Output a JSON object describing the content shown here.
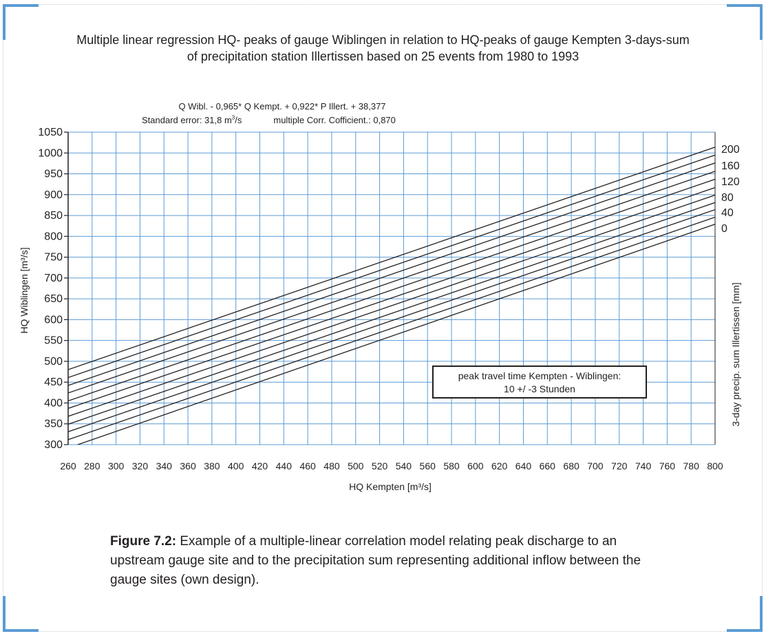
{
  "title": {
    "line1": "Multiple linear regression HQ- peaks of gauge Wiblingen in relation to HQ-peaks of gauge Kempten 3-days-sum",
    "line2": "of precipitation station Illertissen based on 25 events from 1980 to 1993"
  },
  "formula": {
    "equation": "Q Wibl. - 0,965* Q Kempt. + 0,922* P  Illert. + 38,377",
    "std_error_label": "Standard error: 31,8 m",
    "std_error_unit_sup": "3",
    "std_error_unit_tail": "/s",
    "multiple_corr": "multiple Corr. Cofficient.: 0,870"
  },
  "annotation": {
    "line1": "peak travel time Kempten - Wiblingen:",
    "line2": "10 +/ -3 Stunden"
  },
  "caption": {
    "label": "Figure 7.2:",
    "text": " Example of a multiple-linear correlation model relating peak discharge to an upstream gauge site and to the precipitation sum representing additional inflow between the gauge sites (own design)."
  },
  "colors": {
    "grid": "#5b9bd5",
    "lines": "#231f20",
    "corner_accent": "#5b9bd5"
  },
  "chart_data": {
    "type": "line",
    "xlabel": "HQ Kempten [m³/s]",
    "ylabel": "HQ Wiblingen [m³/s]",
    "y2label": "3-day precip. sum Illertissen [mm]",
    "xlim": [
      260,
      800
    ],
    "ylim": [
      300,
      1050
    ],
    "x_ticks": [
      260,
      280,
      300,
      320,
      340,
      360,
      380,
      400,
      420,
      440,
      460,
      480,
      500,
      520,
      540,
      560,
      580,
      600,
      620,
      640,
      660,
      680,
      700,
      720,
      740,
      760,
      780,
      800
    ],
    "y_ticks": [
      300,
      350,
      400,
      450,
      500,
      550,
      600,
      650,
      700,
      750,
      800,
      850,
      900,
      950,
      1000,
      1050
    ],
    "right_tick_labels": [
      "200",
      "160",
      "120",
      "80",
      "40",
      "0"
    ],
    "grid": true,
    "model": {
      "coef_kempten": 0.965,
      "coef_precip": 0.922,
      "intercept": 38.377
    },
    "series": [
      {
        "precip": 0,
        "label": "0",
        "x": [
          260,
          800
        ],
        "y": [
          292,
          829
        ]
      },
      {
        "precip": 20,
        "label": "",
        "x": [
          260,
          800
        ],
        "y": [
          312,
          846
        ]
      },
      {
        "precip": 40,
        "label": "40",
        "x": [
          260,
          800
        ],
        "y": [
          331,
          864
        ]
      },
      {
        "precip": 60,
        "label": "",
        "x": [
          260,
          800
        ],
        "y": [
          349,
          881
        ]
      },
      {
        "precip": 80,
        "label": "80",
        "x": [
          260,
          800
        ],
        "y": [
          368,
          899
        ]
      },
      {
        "precip": 100,
        "label": "",
        "x": [
          260,
          800
        ],
        "y": [
          387,
          917
        ]
      },
      {
        "precip": 120,
        "label": "120",
        "x": [
          260,
          800
        ],
        "y": [
          405,
          937
        ]
      },
      {
        "precip": 140,
        "label": "",
        "x": [
          260,
          800
        ],
        "y": [
          424,
          956
        ]
      },
      {
        "precip": 160,
        "label": "160",
        "x": [
          260,
          800
        ],
        "y": [
          442,
          976
        ]
      },
      {
        "precip": 180,
        "label": "",
        "x": [
          260,
          800
        ],
        "y": [
          461,
          995
        ]
      },
      {
        "precip": 200,
        "label": "200",
        "x": [
          260,
          800
        ],
        "y": [
          480,
          1014
        ]
      }
    ]
  }
}
